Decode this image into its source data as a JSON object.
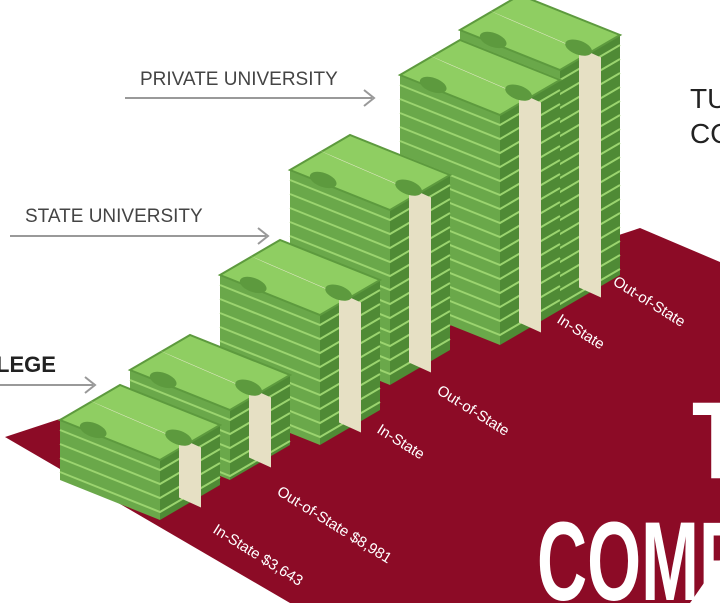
{
  "labels": {
    "private": "PRIVATE UNIVERSITY",
    "state": "STATE UNIVERSITY",
    "college": "LEGE"
  },
  "floor_labels": [
    "Out-of-State",
    "In-State",
    "Out-of-State",
    "In-State",
    "Out-of-State $8,981",
    "In-State $3,643"
  ],
  "heading": {
    "line1": "TU",
    "line2": "CO"
  },
  "title": {
    "line1": "T",
    "line2": "COMPA"
  }
}
